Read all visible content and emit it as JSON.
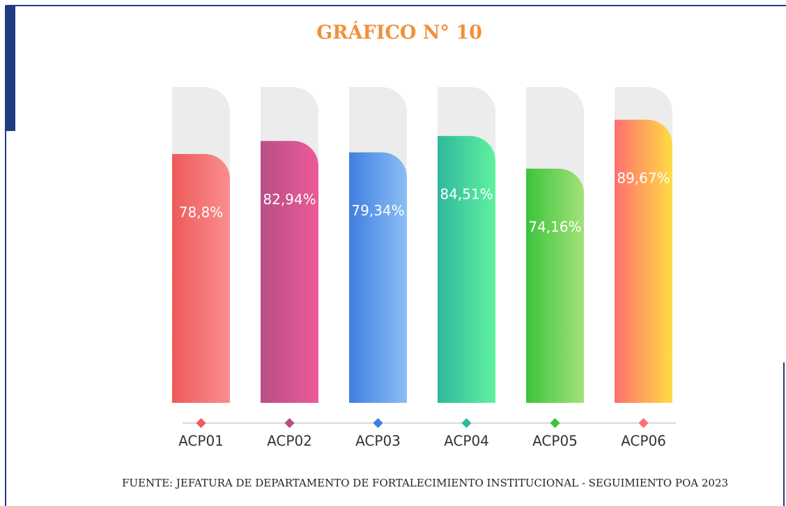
{
  "chart_data": {
    "type": "bar",
    "title": "GRÁFICO N° 10",
    "categories": [
      "ACP01",
      "ACP02",
      "ACP03",
      "ACP04",
      "ACP05",
      "ACP06"
    ],
    "values": [
      78.8,
      82.94,
      79.34,
      84.51,
      74.16,
      89.67
    ],
    "value_labels": [
      "78,8%",
      "82,94%",
      "79,34%",
      "84,51%",
      "74,16%",
      "89,67%"
    ],
    "colors": [
      [
        "#ee5a5a",
        "#fa8e8e"
      ],
      [
        "#b84f86",
        "#ec5a98"
      ],
      [
        "#3f7fe0",
        "#8cbef5"
      ],
      [
        "#2fb89c",
        "#5ff2a0"
      ],
      [
        "#3cc43c",
        "#a3e27a"
      ],
      [
        "#ff6f6f",
        "#ffdd44"
      ]
    ],
    "ylim": [
      0,
      100
    ],
    "source": "FUENTE: JEFATURA DE DEPARTAMENTO DE FORTALECIMIENTO INSTITUCIONAL - SEGUIMIENTO POA 2023"
  }
}
